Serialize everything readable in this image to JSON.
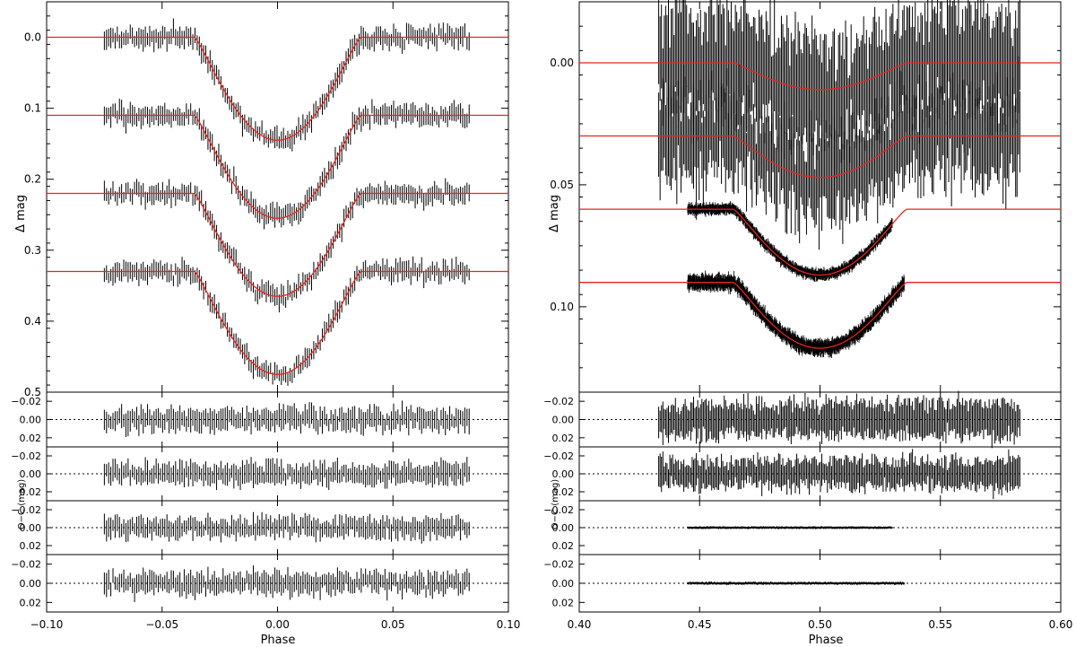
{
  "chart_data": [
    {
      "panel": "left",
      "type": "line",
      "xlabel": "Phase",
      "ylabel": "Δ mag",
      "residual_ylabel": "O−C (mag)",
      "xlim": [
        -0.1,
        0.1
      ],
      "xticks": [
        "−0.10",
        "−0.05",
        "0.00",
        "0.05",
        "0.10"
      ],
      "xtick_values": [
        -0.1,
        -0.05,
        0.0,
        0.05,
        0.1
      ],
      "main_ylim": [
        0.5,
        -0.05
      ],
      "main_yticks": [
        "0.0",
        "0.1",
        "0.2",
        "0.3",
        "0.4",
        "0.5"
      ],
      "main_ytick_values": [
        0.0,
        0.1,
        0.2,
        0.3,
        0.4,
        0.5
      ],
      "residual_ylim": [
        0.03,
        -0.03
      ],
      "residual_yticks": [
        "−0.02",
        "0.00",
        "0.02"
      ],
      "residual_ytick_values": [
        -0.02,
        0.0,
        0.02
      ],
      "data_range": [
        -0.075,
        0.083
      ],
      "series": [
        {
          "offset": 0.0,
          "depth": 0.145,
          "x_min": -0.075,
          "x_max": 0.083,
          "err": 0.013,
          "res_scatter": 0.007,
          "model_color": "#e8241f"
        },
        {
          "offset": 0.11,
          "depth": 0.145,
          "x_min": -0.075,
          "x_max": 0.083,
          "err": 0.013,
          "res_scatter": 0.007,
          "model_color": "#e8241f"
        },
        {
          "offset": 0.22,
          "depth": 0.145,
          "x_min": -0.075,
          "x_max": 0.083,
          "err": 0.012,
          "res_scatter": 0.007,
          "model_color": "#e8241f"
        },
        {
          "offset": 0.33,
          "depth": 0.145,
          "x_min": -0.075,
          "x_max": 0.083,
          "err": 0.012,
          "res_scatter": 0.007,
          "model_color": "#e8241f"
        }
      ],
      "eclipse": {
        "center": 0.0,
        "ingress_start": -0.036,
        "egress_end": 0.036
      }
    },
    {
      "panel": "right",
      "type": "line",
      "xlabel": "Phase",
      "ylabel": "Δ mag",
      "residual_ylabel": "O−C (mag)",
      "xlim": [
        0.4,
        0.6
      ],
      "xticks": [
        "0.40",
        "0.45",
        "0.50",
        "0.55",
        "0.60"
      ],
      "xtick_values": [
        0.4,
        0.45,
        0.5,
        0.55,
        0.6
      ],
      "main_ylim": [
        0.135,
        -0.025
      ],
      "main_yticks": [
        "0.00",
        "0.05",
        "0.10"
      ],
      "main_ytick_values": [
        0.0,
        0.05,
        0.1
      ],
      "residual_ylim": [
        0.03,
        -0.03
      ],
      "residual_yticks": [
        "−0.02",
        "0.00",
        "0.02"
      ],
      "residual_ytick_values": [
        -0.02,
        0.0,
        0.02
      ],
      "series": [
        {
          "offset": 0.0,
          "depth": 0.011,
          "x_min": 0.433,
          "x_max": 0.583,
          "err": 0.022,
          "res_scatter": 0.008,
          "model_color": "#e8241f"
        },
        {
          "offset": 0.03,
          "depth": 0.017,
          "x_min": 0.433,
          "x_max": 0.583,
          "err": 0.018,
          "res_scatter": 0.008,
          "model_color": "#e8241f"
        },
        {
          "offset": 0.06,
          "depth": 0.027,
          "x_min": 0.445,
          "x_max": 0.53,
          "err": 0.002,
          "res_scatter": 0.0008,
          "model_color": "#e8241f"
        },
        {
          "offset": 0.09,
          "depth": 0.027,
          "x_min": 0.445,
          "x_max": 0.535,
          "err": 0.003,
          "res_scatter": 0.0009,
          "model_color": "#e8241f"
        }
      ],
      "eclipse": {
        "center": 0.5,
        "ingress_start": 0.464,
        "egress_end": 0.536
      }
    }
  ]
}
